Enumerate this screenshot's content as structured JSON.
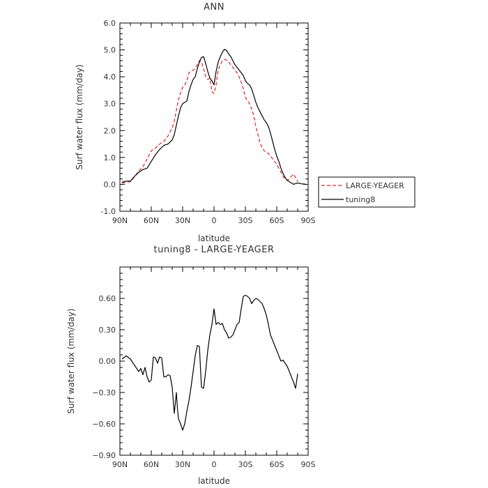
{
  "chart_data": [
    {
      "type": "line",
      "title": "ANN",
      "xlabel": "latitude",
      "ylabel": "Surf water flux (mm/day)",
      "xlim": [
        90,
        -90
      ],
      "ylim": [
        -1.0,
        6.0
      ],
      "xticks": [
        90,
        60,
        30,
        0,
        -30,
        -60,
        -90
      ],
      "xtick_labels": [
        "90N",
        "60N",
        "30N",
        "0",
        "30S",
        "60S",
        "90S"
      ],
      "yticks": [
        -1.0,
        0.0,
        1.0,
        2.0,
        3.0,
        4.0,
        5.0,
        6.0
      ],
      "ytick_labels": [
        "-1.0",
        "0.0",
        "1.0",
        "2.0",
        "3.0",
        "4.0",
        "5.0",
        "6.0"
      ],
      "legend": "right",
      "series": [
        {
          "name": "LARGE-YEAGER",
          "color": "#e0202a",
          "dash": true,
          "x": [
            88,
            84,
            80,
            76,
            72,
            68,
            64,
            60,
            56,
            52,
            48,
            44,
            40,
            38,
            36,
            34,
            32,
            30,
            28,
            26,
            24,
            22,
            20,
            18,
            16,
            14,
            12,
            10,
            8,
            6,
            4,
            2,
            0,
            -2,
            -4,
            -6,
            -8,
            -10,
            -12,
            -14,
            -16,
            -18,
            -20,
            -22,
            -24,
            -26,
            -28,
            -30,
            -32,
            -34,
            -36,
            -38,
            -40,
            -42,
            -44,
            -46,
            -48,
            -50,
            -52,
            -54,
            -56,
            -58,
            -60,
            -62,
            -64,
            -66,
            -68,
            -70,
            -72,
            -74,
            -76,
            -78,
            -80
          ],
          "y": [
            0.05,
            0.08,
            0.1,
            0.28,
            0.5,
            0.65,
            0.95,
            1.25,
            1.35,
            1.5,
            1.6,
            1.8,
            2.1,
            2.35,
            2.75,
            3.15,
            3.4,
            3.6,
            3.7,
            3.85,
            4.15,
            4.22,
            4.25,
            4.3,
            4.45,
            4.6,
            4.55,
            4.3,
            4.02,
            3.9,
            3.95,
            3.45,
            3.38,
            3.7,
            4.25,
            4.45,
            4.6,
            4.65,
            4.62,
            4.55,
            4.45,
            4.35,
            4.25,
            4.15,
            4.0,
            3.8,
            3.55,
            3.25,
            3.1,
            3.0,
            2.8,
            2.55,
            2.15,
            1.85,
            1.55,
            1.35,
            1.25,
            1.18,
            1.15,
            1.05,
            0.95,
            0.85,
            0.75,
            0.6,
            0.45,
            0.3,
            0.2,
            0.15,
            0.2,
            0.3,
            0.38,
            0.25,
            0.1
          ]
        },
        {
          "name": "tuning8",
          "color": "#000000",
          "dash": false,
          "x": [
            88,
            84,
            80,
            76,
            72,
            68,
            64,
            60,
            56,
            52,
            48,
            44,
            40,
            38,
            36,
            34,
            32,
            30,
            28,
            26,
            24,
            22,
            20,
            18,
            16,
            14,
            12,
            10,
            8,
            6,
            4,
            2,
            0,
            -2,
            -4,
            -6,
            -8,
            -10,
            -12,
            -14,
            -16,
            -18,
            -20,
            -22,
            -24,
            -26,
            -28,
            -30,
            -32,
            -34,
            -36,
            -38,
            -40,
            -42,
            -44,
            -46,
            -48,
            -50,
            -52,
            -54,
            -56,
            -58,
            -60,
            -62,
            -64,
            -66,
            -68,
            -70,
            -72,
            -74,
            -76,
            -78,
            -80,
            -84,
            -88
          ],
          "y": [
            0.08,
            0.12,
            0.12,
            0.3,
            0.45,
            0.55,
            0.6,
            0.85,
            1.1,
            1.3,
            1.45,
            1.5,
            1.65,
            1.85,
            2.2,
            2.55,
            2.85,
            3.0,
            3.05,
            3.1,
            3.45,
            3.7,
            3.9,
            4.0,
            4.3,
            4.55,
            4.72,
            4.75,
            4.5,
            4.2,
            3.95,
            3.85,
            3.7,
            4.2,
            4.55,
            4.75,
            4.92,
            5.02,
            4.98,
            4.85,
            4.75,
            4.6,
            4.45,
            4.35,
            4.25,
            4.15,
            4.05,
            3.85,
            3.75,
            3.7,
            3.55,
            3.3,
            3.05,
            2.85,
            2.7,
            2.55,
            2.4,
            2.3,
            2.15,
            1.9,
            1.6,
            1.3,
            1.05,
            0.85,
            0.6,
            0.4,
            0.25,
            0.15,
            0.1,
            0.05,
            0.0,
            0.03,
            0.05,
            0.02,
            0.0
          ]
        }
      ]
    },
    {
      "type": "line",
      "title": "tuning8 - LARGE-YEAGER",
      "xlabel": "latitude",
      "ylabel": "Surf water flux (mm/day)",
      "xlim": [
        90,
        -90
      ],
      "ylim": [
        -0.9,
        0.9
      ],
      "xticks": [
        90,
        60,
        30,
        0,
        -30,
        -60,
        -90
      ],
      "xtick_labels": [
        "90N",
        "60N",
        "30N",
        "0",
        "30S",
        "60S",
        "90S"
      ],
      "yticks": [
        -0.9,
        -0.6,
        -0.3,
        0.0,
        0.3,
        0.6
      ],
      "ytick_labels": [
        "−0.90",
        "−0.60",
        "−0.30",
        "0.00",
        "0.30",
        "0.60"
      ],
      "series": [
        {
          "color": "#000000",
          "dash": false,
          "x": [
            88,
            84,
            80,
            76,
            72,
            70,
            68,
            66,
            64,
            62,
            60,
            58,
            56,
            54,
            52,
            50,
            48,
            46,
            44,
            42,
            40,
            38,
            36,
            35,
            34,
            32,
            30,
            28,
            26,
            24,
            22,
            20,
            18,
            16,
            14,
            12,
            10,
            8,
            6,
            4,
            2,
            0,
            -2,
            -4,
            -6,
            -8,
            -10,
            -12,
            -14,
            -16,
            -18,
            -20,
            -22,
            -24,
            -26,
            -28,
            -30,
            -32,
            -34,
            -36,
            -38,
            -40,
            -42,
            -44,
            -46,
            -48,
            -50,
            -52,
            -54,
            -56,
            -58,
            -60,
            -62,
            -64,
            -66,
            -68,
            -70,
            -72,
            -74,
            -76,
            -78,
            -80
          ],
          "y": [
            0.02,
            0.05,
            0.02,
            -0.04,
            -0.1,
            -0.07,
            -0.13,
            -0.06,
            -0.15,
            -0.2,
            -0.18,
            0.04,
            0.03,
            -0.02,
            0.04,
            0.03,
            -0.15,
            -0.15,
            -0.13,
            -0.14,
            -0.25,
            -0.5,
            -0.3,
            -0.45,
            -0.55,
            -0.6,
            -0.66,
            -0.6,
            -0.48,
            -0.38,
            -0.25,
            -0.1,
            0.05,
            0.15,
            0.14,
            -0.25,
            -0.26,
            -0.1,
            0.1,
            0.25,
            0.35,
            0.5,
            0.35,
            0.37,
            0.35,
            0.36,
            0.3,
            0.27,
            0.22,
            0.23,
            0.25,
            0.3,
            0.35,
            0.37,
            0.5,
            0.62,
            0.63,
            0.62,
            0.6,
            0.55,
            0.58,
            0.6,
            0.59,
            0.57,
            0.55,
            0.5,
            0.44,
            0.35,
            0.25,
            0.2,
            0.15,
            0.1,
            0.05,
            0.0,
            0.01,
            -0.02,
            -0.05,
            -0.1,
            -0.15,
            -0.2,
            -0.26,
            -0.12
          ]
        }
      ]
    }
  ]
}
